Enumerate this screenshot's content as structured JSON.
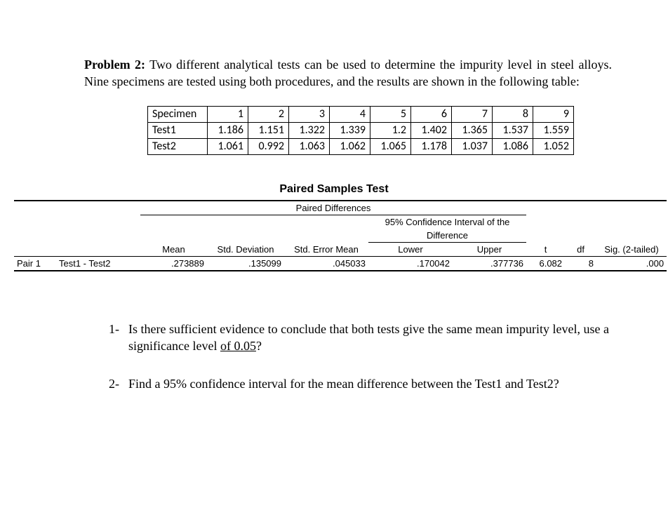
{
  "problem": {
    "label": "Problem 2:",
    "text": "Two different analytical tests can be used to determine the impurity level in steel alloys. Nine specimens are tested using both procedures, and the results are shown in the following table:"
  },
  "dataTable": {
    "rowLabels": [
      "Specimen",
      "Test1",
      "Test2"
    ],
    "specimen": [
      "1",
      "2",
      "3",
      "4",
      "5",
      "6",
      "7",
      "8",
      "9"
    ],
    "test1": [
      "1.186",
      "1.151",
      "1.322",
      "1.339",
      "1.2",
      "1.402",
      "1.365",
      "1.537",
      "1.559"
    ],
    "test2": [
      "1.061",
      "0.992",
      "1.063",
      "1.062",
      "1.065",
      "1.178",
      "1.037",
      "1.086",
      "1.052"
    ]
  },
  "pst": {
    "title": "Paired Samples Test",
    "pdHeader": "Paired Differences",
    "ciHeader1": "95% Confidence Interval of the",
    "ciHeader2": "Difference",
    "cols": {
      "mean": "Mean",
      "std": "Std. Deviation",
      "sem": "Std. Error Mean",
      "lower": "Lower",
      "upper": "Upper",
      "t": "t",
      "df": "df",
      "sig": "Sig. (2-tailed)"
    },
    "row": {
      "pair": "Pair 1",
      "label": "Test1 - Test2",
      "mean": ".273889",
      "std": ".135099",
      "sem": ".045033",
      "lower": ".170042",
      "upper": ".377736",
      "t": "6.082",
      "df": "8",
      "sig": ".000"
    }
  },
  "questions": {
    "q1num": "1-",
    "q1a": "Is there sufficient evidence to conclude that both tests give the same mean impurity level, use a significance level ",
    "q1b": "of  0.05",
    "q1c": "?",
    "q2num": "2-",
    "q2": "Find a 95% confidence interval for the mean difference between the Test1 and Test2?"
  },
  "style": {
    "colWidths": {
      "pair": 60,
      "label": 120,
      "mean": 95,
      "std": 110,
      "sem": 120,
      "lower": 120,
      "upper": 105,
      "t": 55,
      "df": 45,
      "sig": 100
    }
  }
}
